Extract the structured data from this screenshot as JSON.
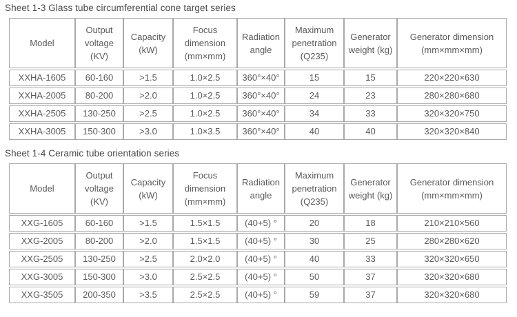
{
  "colors": {
    "title_text": "#474747",
    "cell_text": "#5a5a5a",
    "border": "#a9a9a9",
    "background": "#ffffff"
  },
  "tables": [
    {
      "title": "Sheet 1-3 Glass tube circumferential cone target series",
      "headers": [
        "Model",
        "Output voltage (KV)",
        "Capacity (kW)",
        "Focus dimension (mm×mm)",
        "Radiation angle",
        "Maximum penetration (Q235)",
        "Generator weight (kg)",
        "Generator dimension (mm×mm×mm)"
      ],
      "rows": [
        [
          "XXHA-1605",
          "60-160",
          ">1.5",
          "1.0×2.5",
          "360°×40°",
          "15",
          "15",
          "220×220×630"
        ],
        [
          "XXHA-2005",
          "80-200",
          ">2.0",
          "1.0×2.5",
          "360°×40°",
          "24",
          "23",
          "280×280×680"
        ],
        [
          "XXHA-2505",
          "130-250",
          ">2.5",
          "1.0×2.5",
          "360°×40°",
          "34",
          "33",
          "320×320×750"
        ],
        [
          "XXHA-3005",
          "150-300",
          ">3.0",
          "1.0×3.5",
          "360°×40°",
          "40",
          "40",
          "320×320×840"
        ]
      ]
    },
    {
      "title": "Sheet 1-4 Ceramic tube orientation series",
      "headers": [
        "Model",
        "Output voltage (KV)",
        "Capacity (kW)",
        "Focus dimension (mm×mm)",
        "Radiation angle",
        "Maximum penetration (Q235)",
        "Generator weight (kg)",
        "Generator dimension (mm×mm×mm)"
      ],
      "rows": [
        [
          "XXG-1605",
          "60-160",
          ">1.5",
          "1.5×1.5",
          "(40+5) °",
          "20",
          "18",
          "210×210×560"
        ],
        [
          "XXG-2005",
          "80-200",
          ">2.0",
          "1.5×1.5",
          "(40+5) °",
          "30",
          "25",
          "280×280×620"
        ],
        [
          "XXG-2505",
          "130-250",
          ">2.5",
          "2.0×2.0",
          "(40+5) °",
          "40",
          "33",
          "320×320×650"
        ],
        [
          "XXG-3005",
          "150-300",
          ">3.0",
          "2.5×2.5",
          "(40+5) °",
          "50",
          "37",
          "320×320×680"
        ],
        [
          "XXG-3505",
          "200-350",
          ">3.5",
          "2.5×2.5",
          "(40+5) °",
          "59",
          "37",
          "320×320×680"
        ]
      ]
    }
  ]
}
